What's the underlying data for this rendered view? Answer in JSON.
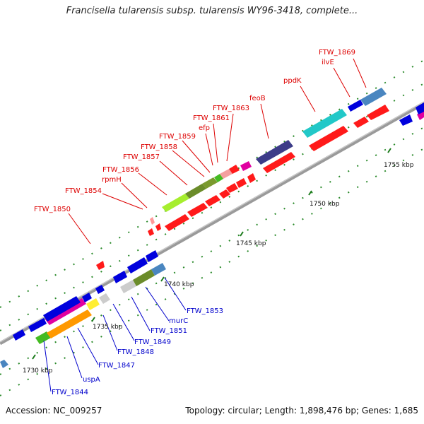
{
  "title": "Francisella tularensis subsp. tularensis WY96-3418, complete...",
  "footer": {
    "accession": "Accession: NC_009257",
    "summary": "Topology: circular; Length: 1,898,476 bp; Genes: 1,685"
  },
  "colors": {
    "backbone": "#8c8c8c",
    "red_label": "#dd0000",
    "blue_label": "#0000cc",
    "tick": "#1a7a1a"
  },
  "top_labels": [
    {
      "text": "FTW_1869"
    },
    {
      "text": "ilvE"
    },
    {
      "text": "ppdK"
    },
    {
      "text": "feoB"
    },
    {
      "text": "FTW_1863"
    },
    {
      "text": "FTW_1861"
    },
    {
      "text": "efp"
    },
    {
      "text": "FTW_1859"
    },
    {
      "text": "FTW_1858"
    },
    {
      "text": "FTW_1857"
    },
    {
      "text": "FTW_1856"
    },
    {
      "text": "rpmH"
    },
    {
      "text": "FTW_1854"
    },
    {
      "text": "FTW_1850"
    }
  ],
  "bottom_labels": [
    {
      "text": "FTW_1853"
    },
    {
      "text": "murC"
    },
    {
      "text": "FTW_1851"
    },
    {
      "text": "FTW_1849"
    },
    {
      "text": "FTW_1848"
    },
    {
      "text": "FTW_1847"
    },
    {
      "text": "uspA"
    },
    {
      "text": "FTW_1844"
    }
  ],
  "ticks": [
    {
      "text": "1755 kbp"
    },
    {
      "text": "1750 kbp"
    },
    {
      "text": "1745 kbp"
    },
    {
      "text": "1740 kbp"
    },
    {
      "text": "1735 kbp"
    },
    {
      "text": "1730 kbp"
    }
  ]
}
